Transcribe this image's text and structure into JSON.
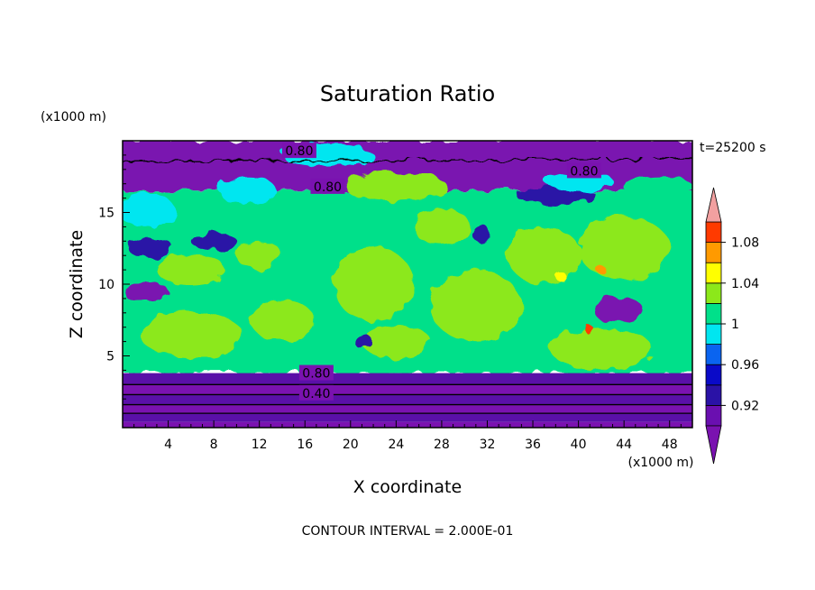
{
  "chart_data": {
    "type": "heatmap",
    "title": "Saturation Ratio",
    "xlabel": "X coordinate",
    "ylabel": "Z coordinate",
    "x_unit": "(x1000 m)",
    "y_unit": "(x1000 m)",
    "time_label": "t=25200 s",
    "footer": "CONTOUR INTERVAL = 2.000E-01",
    "xlim": [
      0,
      50
    ],
    "ylim": [
      0,
      20
    ],
    "x_ticks": [
      4,
      8,
      12,
      16,
      20,
      24,
      28,
      32,
      36,
      40,
      44,
      48
    ],
    "y_ticks": [
      5,
      10,
      15
    ],
    "contour_labels": [
      {
        "text": "0.80",
        "x": 15.5,
        "y": 19.3
      },
      {
        "text": "0.80",
        "x": 18.0,
        "y": 16.8
      },
      {
        "text": "0.80",
        "x": 40.5,
        "y": 17.9
      },
      {
        "text": "0.80",
        "x": 17.0,
        "y": 3.8
      },
      {
        "text": "0.40",
        "x": 17.0,
        "y": 2.4
      }
    ],
    "colorbar": {
      "levels": [
        0.9,
        0.92,
        0.94,
        0.96,
        0.98,
        1.0,
        1.02,
        1.04,
        1.06,
        1.08,
        1.1
      ],
      "tick_labels": [
        "0.92",
        "0.96",
        "1",
        "1.04",
        "1.08"
      ],
      "tick_values": [
        0.92,
        0.96,
        1.0,
        1.04,
        1.08
      ],
      "colors": [
        "#6a0fb0",
        "#2a12a6",
        "#0a0ac8",
        "#0a64f0",
        "#00e6f0",
        "#00e08a",
        "#8ce81a",
        "#ffff00",
        "#ff9a00",
        "#ff3a00",
        "#ff2020"
      ],
      "under_color": "#7a12b0",
      "over_color": "#f2a0a0"
    },
    "layers": [
      {
        "z": [
          0,
          0.4
        ],
        "color": "#7a12b0"
      },
      {
        "z": [
          0.4,
          1.0
        ],
        "color": "#5a10a8"
      },
      {
        "z": [
          1.0,
          1.6
        ],
        "color": "#7a12b0"
      },
      {
        "z": [
          1.6,
          2.3
        ],
        "color": "#5a10a8"
      },
      {
        "z": [
          2.3,
          3.0
        ],
        "color": "#7a12b0"
      },
      {
        "z": [
          3.0,
          3.8
        ],
        "color": "#5a10a8"
      }
    ],
    "regions": [
      {
        "kind": "band",
        "z": [
          3.8,
          16.5
        ],
        "color": "#00e08a"
      },
      {
        "kind": "band",
        "z": [
          16.5,
          20
        ],
        "color": "#7a12b0"
      },
      {
        "kind": "blob",
        "cx": 22,
        "cy": 10,
        "rx": 3.5,
        "ry": 2.6,
        "color": "#8ce81a"
      },
      {
        "kind": "blob",
        "cx": 31,
        "cy": 8.5,
        "rx": 4.0,
        "ry": 2.5,
        "color": "#8ce81a"
      },
      {
        "kind": "blob",
        "cx": 37,
        "cy": 12,
        "rx": 3.2,
        "ry": 2.0,
        "color": "#8ce81a"
      },
      {
        "kind": "blob",
        "cx": 44,
        "cy": 12.5,
        "rx": 4.0,
        "ry": 2.2,
        "color": "#8ce81a"
      },
      {
        "kind": "blob",
        "cx": 28,
        "cy": 14,
        "rx": 2.5,
        "ry": 1.3,
        "color": "#8ce81a"
      },
      {
        "kind": "blob",
        "cx": 6,
        "cy": 6.5,
        "rx": 4.5,
        "ry": 1.6,
        "color": "#8ce81a"
      },
      {
        "kind": "blob",
        "cx": 14,
        "cy": 7.5,
        "rx": 2.8,
        "ry": 1.4,
        "color": "#8ce81a"
      },
      {
        "kind": "blob",
        "cx": 12,
        "cy": 12,
        "rx": 2.0,
        "ry": 1.0,
        "color": "#8ce81a"
      },
      {
        "kind": "blob",
        "cx": 42,
        "cy": 5.5,
        "rx": 4.5,
        "ry": 1.4,
        "color": "#8ce81a"
      },
      {
        "kind": "blob",
        "cx": 24,
        "cy": 6.0,
        "rx": 3.0,
        "ry": 1.2,
        "color": "#8ce81a"
      },
      {
        "kind": "blob",
        "cx": 6,
        "cy": 11,
        "rx": 3.0,
        "ry": 1.1,
        "color": "#8ce81a"
      },
      {
        "kind": "blob",
        "cx": 2,
        "cy": 15.2,
        "rx": 2.5,
        "ry": 1.2,
        "color": "#00e6f0"
      },
      {
        "kind": "blob",
        "cx": 11,
        "cy": 16.5,
        "rx": 2.5,
        "ry": 1.0,
        "color": "#00e6f0"
      },
      {
        "kind": "blob",
        "cx": 2.5,
        "cy": 12.5,
        "rx": 2.0,
        "ry": 0.7,
        "color": "#2a12a6"
      },
      {
        "kind": "blob",
        "cx": 8,
        "cy": 13,
        "rx": 2.0,
        "ry": 0.6,
        "color": "#2a12a6"
      },
      {
        "kind": "blob",
        "cx": 2,
        "cy": 9.5,
        "rx": 2.0,
        "ry": 0.7,
        "color": "#7a12b0"
      },
      {
        "kind": "blob",
        "cx": 43.5,
        "cy": 8.2,
        "rx": 2.2,
        "ry": 0.9,
        "color": "#7a12b0"
      },
      {
        "kind": "blob",
        "cx": 21,
        "cy": 6.1,
        "rx": 0.8,
        "ry": 0.5,
        "color": "#2a12a6"
      },
      {
        "kind": "blob",
        "cx": 38,
        "cy": 16.2,
        "rx": 3.5,
        "ry": 0.6,
        "color": "#2a12a6"
      },
      {
        "kind": "blob",
        "cx": 31.5,
        "cy": 13.5,
        "rx": 0.8,
        "ry": 0.6,
        "color": "#2a12a6"
      },
      {
        "kind": "blob",
        "cx": 18,
        "cy": 19.0,
        "rx": 4.0,
        "ry": 0.8,
        "color": "#00e6f0"
      },
      {
        "kind": "blob",
        "cx": 24,
        "cy": 16.8,
        "rx": 4.5,
        "ry": 1.0,
        "color": "#8ce81a"
      },
      {
        "kind": "blob",
        "cx": 40,
        "cy": 17.2,
        "rx": 3.0,
        "ry": 0.7,
        "color": "#00e6f0"
      },
      {
        "kind": "blob",
        "cx": 47,
        "cy": 16.8,
        "rx": 3.0,
        "ry": 0.8,
        "color": "#00e08a"
      },
      {
        "kind": "blob",
        "cx": 42,
        "cy": 11.0,
        "rx": 0.4,
        "ry": 0.3,
        "color": "#ff9a00"
      },
      {
        "kind": "blob",
        "cx": 38.5,
        "cy": 10.5,
        "rx": 0.5,
        "ry": 0.3,
        "color": "#ffff00"
      },
      {
        "kind": "blob",
        "cx": 41,
        "cy": 6.8,
        "rx": 0.4,
        "ry": 0.3,
        "color": "#ff3a00"
      }
    ]
  }
}
